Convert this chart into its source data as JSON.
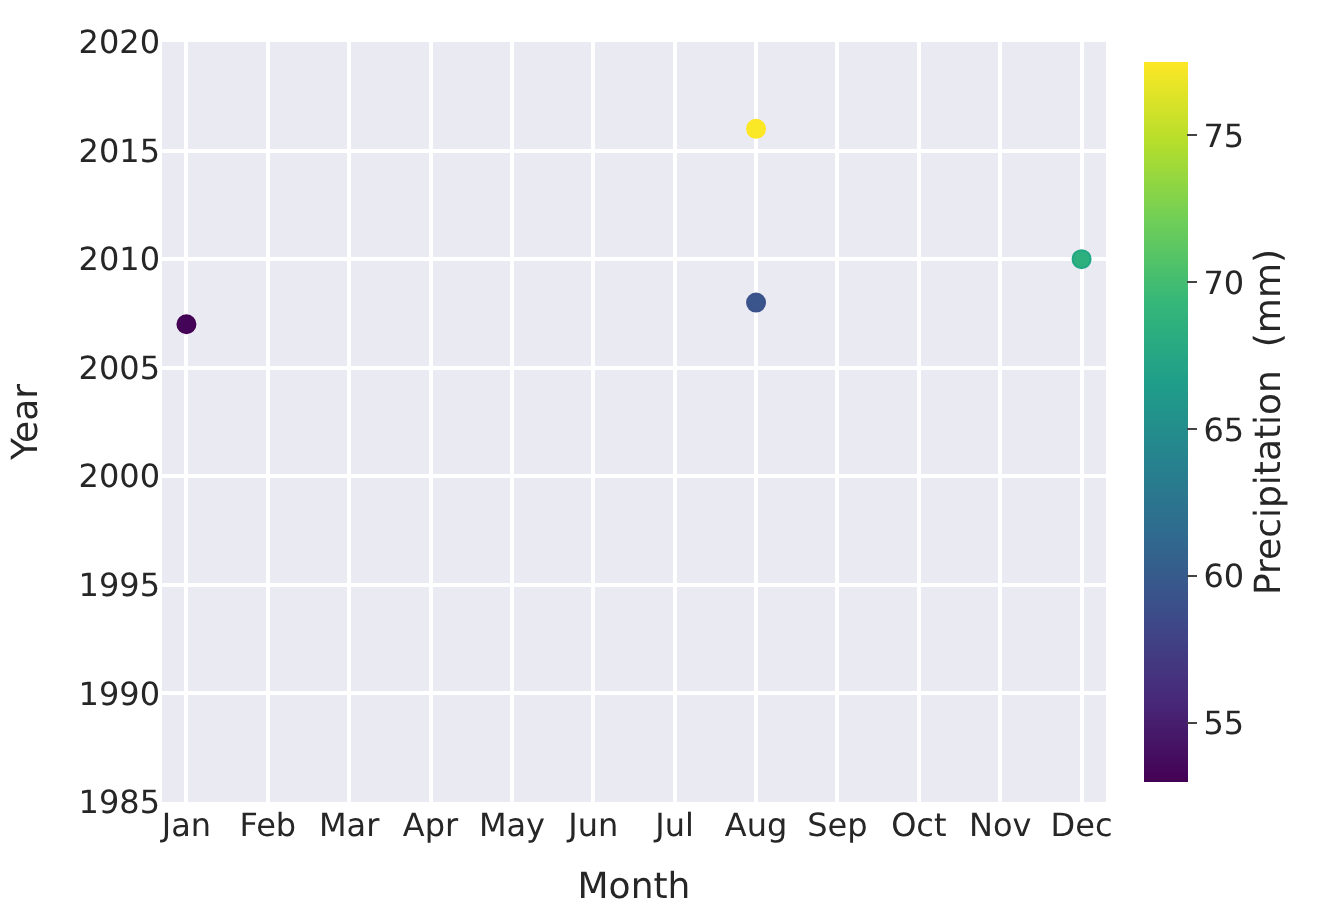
{
  "chart_data": {
    "type": "scatter",
    "xlabel": "Month",
    "ylabel": "Year",
    "clabel": "Precipitation  (mm)",
    "categories": [
      "Jan",
      "Feb",
      "Mar",
      "Apr",
      "May",
      "Jun",
      "Jul",
      "Aug",
      "Sep",
      "Oct",
      "Nov",
      "Dec"
    ],
    "series": [
      {
        "values": [
          2007,
          null,
          null,
          null,
          null,
          null,
          null,
          2008,
          null,
          null,
          null,
          2010
        ],
        "cvalues": [
          53.2,
          null,
          null,
          null,
          null,
          null,
          null,
          59.5,
          null,
          null,
          null,
          68.5
        ],
        "colors": [
          "#440154",
          null,
          null,
          null,
          null,
          null,
          null,
          "#3b528b",
          null,
          null,
          null,
          "#21a784"
        ]
      },
      {
        "values": [
          null,
          null,
          null,
          null,
          null,
          null,
          null,
          2016,
          null,
          null,
          null,
          null
        ],
        "cvalues": [
          null,
          null,
          null,
          null,
          null,
          null,
          null,
          77.4,
          null,
          null,
          null,
          null
        ],
        "colors": [
          null,
          null,
          null,
          null,
          null,
          null,
          null,
          "#fde725",
          null,
          null,
          null,
          null
        ]
      }
    ],
    "clim": [
      53,
      77.5
    ],
    "cticks": [
      55,
      60,
      65,
      70,
      75
    ],
    "ylim": [
      1985,
      2020
    ],
    "yticks": [
      1985,
      1990,
      1995,
      2000,
      2005,
      2010,
      2015,
      2020
    ],
    "grid": true,
    "marker": "circle"
  }
}
